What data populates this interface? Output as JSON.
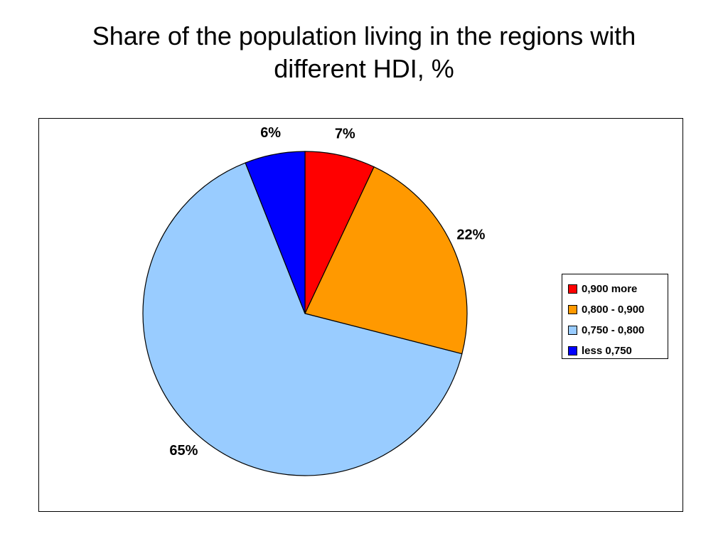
{
  "title_lines": [
    "Share of the population living in the regions with",
    "different HDI, %"
  ],
  "chart_data": {
    "type": "pie",
    "title": "Share of the population living in the regions with different HDI, %",
    "categories": [
      "0,900 more",
      "0,800 - 0,900",
      "0,750 - 0,800",
      "less 0,750"
    ],
    "values": [
      7,
      22,
      65,
      6
    ],
    "data_labels": [
      "7%",
      "22%",
      "65%",
      "6%"
    ],
    "colors": [
      "#FF0000",
      "#FF9900",
      "#99CCFF",
      "#0000FF"
    ],
    "start_angle_deg": 0,
    "direction": "clockwise",
    "legend_position": "right"
  }
}
